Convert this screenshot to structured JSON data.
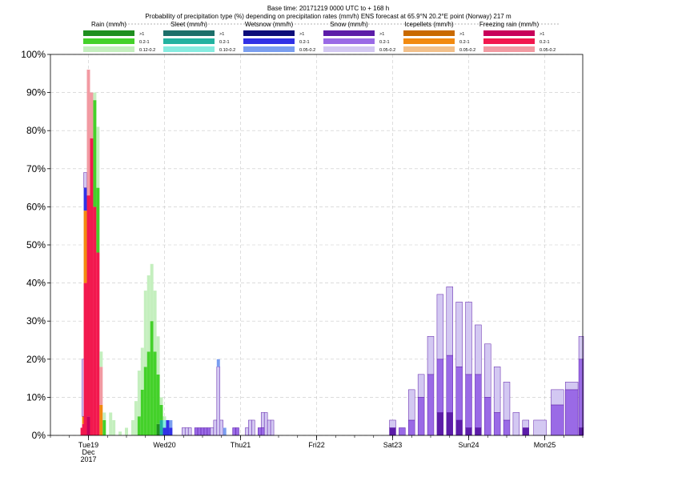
{
  "header": {
    "line1": "Base time: 20171219 0000 UTC to + 168 h",
    "line2": "Probability of precipitation type (%) depending on precipitation rates (mm/h) ENS forecast at 65.9°N  20.2°E point (Norway) 217 m"
  },
  "legend": [
    {
      "label": "Rain (mm/h)",
      "colors": [
        "#1f8f1f",
        "#44d12a",
        "#c4efbe"
      ],
      "levels": [
        ">1",
        "0.2-1",
        "0.12-0.2"
      ]
    },
    {
      "label": "Sleet (mm/h)",
      "colors": [
        "#1d6f6a",
        "#23b2a0",
        "#86ece0"
      ],
      "levels": [
        ">1",
        "0.2-1",
        "0.10-0.2"
      ]
    },
    {
      "label": "Wetsnow (mm/h)",
      "colors": [
        "#0d0d7a",
        "#3131e6",
        "#7a9ef0"
      ],
      "levels": [
        ">1",
        "0.2-1",
        "0.05-0.2"
      ]
    },
    {
      "label": "Snow (mm/h)",
      "colors": [
        "#5c1ca8",
        "#9a6ae6",
        "#d3c8f2"
      ],
      "levels": [
        ">1",
        "0.2-1",
        "0.05-0.2"
      ]
    },
    {
      "label": "Icepellets (mm/h)",
      "colors": [
        "#c96a00",
        "#f28a10",
        "#f2c08a"
      ],
      "levels": [
        ">1",
        "0.2-1",
        "0.05-0.2"
      ]
    },
    {
      "label": "Freezing rain (mm/h)",
      "colors": [
        "#c8005a",
        "#f2184e",
        "#f29aa2"
      ],
      "levels": [
        ">1",
        "0.2-1",
        "0.05-0.2"
      ]
    }
  ],
  "chart_data": {
    "type": "bar",
    "stacked": true,
    "grid": true,
    "x_unit": "hours after base time (20171219 00 UTC)",
    "xlim": [
      -12,
      156
    ],
    "ylim": [
      0,
      100
    ],
    "yticks": [
      0,
      10,
      20,
      30,
      40,
      50,
      60,
      70,
      80,
      90,
      100
    ],
    "ytick_suffix": "%",
    "day_ticks": [
      {
        "h": 0,
        "label": "Tue19",
        "sub": [
          "Dec",
          "2017"
        ],
        "color": "#000000"
      },
      {
        "h": 24,
        "label": "Wed20",
        "sub": [],
        "color": "#000000"
      },
      {
        "h": 48,
        "label": "Thu21",
        "sub": [],
        "color": "#000000"
      },
      {
        "h": 72,
        "label": "Fri22",
        "sub": [],
        "color": "#000000"
      },
      {
        "h": 96,
        "label": "Sat23",
        "sub": [],
        "color": "#000000"
      },
      {
        "h": 120,
        "label": "Sun24",
        "sub": [],
        "color": "#e00000"
      },
      {
        "h": 144,
        "label": "Mon25",
        "sub": [],
        "color": "#000000"
      }
    ],
    "series_colors": {
      "rain_hi": "#1f8f1f",
      "rain_mid": "#44d12a",
      "rain_lo": "#c4efbe",
      "sleet_hi": "#1d6f6a",
      "sleet_mid": "#23b2a0",
      "sleet_lo": "#86ece0",
      "wet_hi": "#0d0d7a",
      "wet_mid": "#3131e6",
      "wet_lo": "#7a9ef0",
      "snow_hi": "#5c1ca8",
      "snow_mid": "#9a6ae6",
      "snow_lo": "#d3c8f2",
      "ice_hi": "#c96a00",
      "ice_mid": "#f28a10",
      "ice_lo": "#f2c08a",
      "frz_hi": "#c8005a",
      "frz_mid": "#f2184e",
      "frz_lo": "#f29aa2"
    },
    "bars": [
      {
        "t": -2,
        "w": 1,
        "seg": [
          [
            "frz_mid",
            2
          ],
          [
            "wet_lo",
            0
          ]
        ]
      },
      {
        "t": -1.5,
        "w": 1,
        "seg": [
          [
            "frz_mid",
            3
          ],
          [
            "ice_mid",
            2
          ],
          [
            "snow_lo",
            15
          ]
        ]
      },
      {
        "t": -1,
        "w": 1,
        "seg": [
          [
            "frz_mid",
            40
          ],
          [
            "ice_mid",
            19
          ],
          [
            "wet_mid",
            6
          ],
          [
            "snow_lo",
            4
          ]
        ]
      },
      {
        "t": 0,
        "w": 1,
        "seg": [
          [
            "frz_hi",
            5
          ],
          [
            "frz_mid",
            58
          ],
          [
            "frz_lo",
            33
          ]
        ]
      },
      {
        "t": 1,
        "w": 1,
        "seg": [
          [
            "frz_mid",
            78
          ],
          [
            "frz_lo",
            12
          ]
        ]
      },
      {
        "t": 2,
        "w": 1,
        "seg": [
          [
            "frz_mid",
            60
          ],
          [
            "rain_mid",
            28
          ],
          [
            "rain_lo",
            2
          ]
        ]
      },
      {
        "t": 3,
        "w": 1,
        "seg": [
          [
            "frz_mid",
            48
          ],
          [
            "rain_mid",
            17
          ],
          [
            "rain_lo",
            16
          ]
        ]
      },
      {
        "t": 4,
        "w": 1,
        "seg": [
          [
            "ice_mid",
            8
          ],
          [
            "frz_lo",
            10
          ],
          [
            "rain_lo",
            4
          ]
        ]
      },
      {
        "t": 5,
        "w": 1,
        "seg": [
          [
            "rain_mid",
            4
          ],
          [
            "rain_lo",
            2
          ]
        ]
      },
      {
        "t": 7,
        "w": 1,
        "seg": [
          [
            "rain_lo",
            6
          ]
        ]
      },
      {
        "t": 8,
        "w": 1,
        "seg": [
          [
            "rain_lo",
            4
          ]
        ]
      },
      {
        "t": 10,
        "w": 1,
        "seg": [
          [
            "rain_lo",
            1
          ]
        ]
      },
      {
        "t": 12,
        "w": 1,
        "seg": [
          [
            "rain_lo",
            2
          ]
        ]
      },
      {
        "t": 14,
        "w": 1,
        "seg": [
          [
            "rain_lo",
            4
          ]
        ]
      },
      {
        "t": 15,
        "w": 1,
        "seg": [
          [
            "rain_lo",
            9
          ]
        ]
      },
      {
        "t": 16,
        "w": 1,
        "seg": [
          [
            "rain_mid",
            5
          ],
          [
            "rain_lo",
            12
          ]
        ]
      },
      {
        "t": 17,
        "w": 1,
        "seg": [
          [
            "rain_mid",
            12
          ],
          [
            "rain_lo",
            11
          ]
        ]
      },
      {
        "t": 18,
        "w": 1,
        "seg": [
          [
            "rain_mid",
            18
          ],
          [
            "rain_lo",
            20
          ]
        ]
      },
      {
        "t": 19,
        "w": 1,
        "seg": [
          [
            "rain_mid",
            22
          ],
          [
            "rain_lo",
            20
          ]
        ]
      },
      {
        "t": 20,
        "w": 1,
        "seg": [
          [
            "rain_mid",
            30
          ],
          [
            "rain_lo",
            15
          ]
        ]
      },
      {
        "t": 21,
        "w": 1,
        "seg": [
          [
            "rain_mid",
            22
          ],
          [
            "rain_lo",
            16
          ]
        ]
      },
      {
        "t": 22,
        "w": 1,
        "seg": [
          [
            "rain_hi",
            3
          ],
          [
            "rain_mid",
            13
          ],
          [
            "rain_lo",
            10
          ]
        ]
      },
      {
        "t": 23,
        "w": 1,
        "seg": [
          [
            "sleet_mid",
            4
          ],
          [
            "rain_mid",
            4
          ],
          [
            "rain_lo",
            2
          ]
        ]
      },
      {
        "t": 24,
        "w": 1,
        "seg": [
          [
            "wet_mid",
            2
          ],
          [
            "sleet_lo",
            2
          ],
          [
            "rain_lo",
            1
          ]
        ]
      },
      {
        "t": 25,
        "w": 1,
        "seg": [
          [
            "wet_mid",
            4
          ]
        ]
      },
      {
        "t": 26,
        "w": 1,
        "seg": [
          [
            "wet_mid",
            2
          ],
          [
            "wet_lo",
            2
          ]
        ]
      },
      {
        "t": 30,
        "w": 1,
        "seg": [
          [
            "snow_lo",
            2
          ]
        ]
      },
      {
        "t": 31,
        "w": 1,
        "seg": [
          [
            "snow_lo",
            2
          ]
        ]
      },
      {
        "t": 32,
        "w": 1,
        "seg": [
          [
            "snow_lo",
            2
          ]
        ]
      },
      {
        "t": 34,
        "w": 1,
        "seg": [
          [
            "snow_mid",
            2
          ]
        ]
      },
      {
        "t": 35,
        "w": 1,
        "seg": [
          [
            "snow_mid",
            2
          ]
        ]
      },
      {
        "t": 36,
        "w": 1,
        "seg": [
          [
            "snow_mid",
            2
          ]
        ]
      },
      {
        "t": 37,
        "w": 1,
        "seg": [
          [
            "snow_mid",
            2
          ]
        ]
      },
      {
        "t": 38,
        "w": 1,
        "seg": [
          [
            "snow_mid",
            2
          ]
        ]
      },
      {
        "t": 39,
        "w": 1,
        "seg": [
          [
            "snow_lo",
            2
          ]
        ]
      },
      {
        "t": 40,
        "w": 1,
        "seg": [
          [
            "snow_lo",
            4
          ]
        ]
      },
      {
        "t": 41,
        "w": 1,
        "seg": [
          [
            "snow_lo",
            18
          ],
          [
            "wet_lo",
            2
          ]
        ]
      },
      {
        "t": 42,
        "w": 1,
        "seg": [
          [
            "snow_lo",
            4
          ]
        ]
      },
      {
        "t": 43,
        "w": 1,
        "seg": [
          [
            "wet_lo",
            2
          ]
        ]
      },
      {
        "t": 46,
        "w": 1,
        "seg": [
          [
            "snow_mid",
            2
          ]
        ]
      },
      {
        "t": 47,
        "w": 1,
        "seg": [
          [
            "snow_mid",
            2
          ]
        ]
      },
      {
        "t": 50,
        "w": 1,
        "seg": [
          [
            "snow_lo",
            2
          ]
        ]
      },
      {
        "t": 51,
        "w": 1,
        "seg": [
          [
            "snow_lo",
            4
          ]
        ]
      },
      {
        "t": 52,
        "w": 1,
        "seg": [
          [
            "snow_lo",
            4
          ]
        ]
      },
      {
        "t": 54,
        "w": 1,
        "seg": [
          [
            "snow_mid",
            2
          ]
        ]
      },
      {
        "t": 55,
        "w": 1,
        "seg": [
          [
            "snow_mid",
            2
          ],
          [
            "snow_lo",
            4
          ]
        ]
      },
      {
        "t": 56,
        "w": 1,
        "seg": [
          [
            "snow_lo",
            6
          ]
        ]
      },
      {
        "t": 57,
        "w": 1,
        "seg": [
          [
            "snow_lo",
            4
          ]
        ]
      },
      {
        "t": 58,
        "w": 1,
        "seg": [
          [
            "snow_lo",
            4
          ]
        ]
      },
      {
        "t": 96,
        "w": 2,
        "seg": [
          [
            "snow_hi",
            2
          ],
          [
            "snow_lo",
            2
          ]
        ]
      },
      {
        "t": 99,
        "w": 2,
        "seg": [
          [
            "snow_mid",
            2
          ]
        ]
      },
      {
        "t": 102,
        "w": 2,
        "seg": [
          [
            "snow_mid",
            4
          ],
          [
            "snow_lo",
            8
          ]
        ]
      },
      {
        "t": 105,
        "w": 2,
        "seg": [
          [
            "snow_mid",
            10
          ],
          [
            "snow_lo",
            6
          ]
        ]
      },
      {
        "t": 108,
        "w": 2,
        "seg": [
          [
            "snow_mid",
            16
          ],
          [
            "snow_lo",
            10
          ]
        ]
      },
      {
        "t": 111,
        "w": 2,
        "seg": [
          [
            "snow_hi",
            6
          ],
          [
            "snow_mid",
            14
          ],
          [
            "snow_lo",
            17
          ]
        ]
      },
      {
        "t": 114,
        "w": 2,
        "seg": [
          [
            "snow_hi",
            6
          ],
          [
            "snow_mid",
            15
          ],
          [
            "snow_lo",
            18
          ]
        ]
      },
      {
        "t": 117,
        "w": 2,
        "seg": [
          [
            "snow_hi",
            4
          ],
          [
            "snow_mid",
            14
          ],
          [
            "snow_lo",
            17
          ]
        ]
      },
      {
        "t": 120,
        "w": 2,
        "seg": [
          [
            "snow_hi",
            2
          ],
          [
            "snow_mid",
            14
          ],
          [
            "snow_lo",
            19
          ]
        ]
      },
      {
        "t": 123,
        "w": 2,
        "seg": [
          [
            "snow_hi",
            2
          ],
          [
            "snow_mid",
            14
          ],
          [
            "snow_lo",
            13
          ]
        ]
      },
      {
        "t": 126,
        "w": 2,
        "seg": [
          [
            "snow_mid",
            10
          ],
          [
            "snow_lo",
            14
          ]
        ]
      },
      {
        "t": 129,
        "w": 2,
        "seg": [
          [
            "snow_mid",
            6
          ],
          [
            "snow_lo",
            12
          ]
        ]
      },
      {
        "t": 132,
        "w": 2,
        "seg": [
          [
            "snow_mid",
            4
          ],
          [
            "snow_lo",
            10
          ]
        ]
      },
      {
        "t": 135,
        "w": 2,
        "seg": [
          [
            "snow_lo",
            6
          ]
        ]
      },
      {
        "t": 138,
        "w": 2,
        "seg": [
          [
            "snow_hi",
            2
          ],
          [
            "snow_lo",
            2
          ]
        ]
      },
      {
        "t": 142.5,
        "w": 4,
        "seg": [
          [
            "snow_lo",
            4
          ]
        ]
      },
      {
        "t": 148,
        "w": 4,
        "seg": [
          [
            "snow_mid",
            8
          ],
          [
            "snow_lo",
            4
          ]
        ]
      },
      {
        "t": 152.5,
        "w": 4,
        "seg": [
          [
            "snow_mid",
            12
          ],
          [
            "snow_lo",
            2
          ]
        ]
      },
      {
        "t": 155.5,
        "w": 1.5,
        "seg": [
          [
            "snow_hi",
            2
          ],
          [
            "snow_mid",
            18
          ],
          [
            "snow_lo",
            6
          ]
        ]
      }
    ]
  }
}
